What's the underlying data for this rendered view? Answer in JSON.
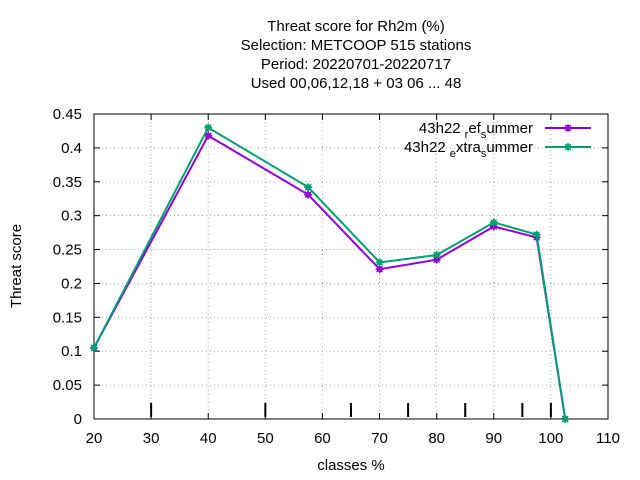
{
  "chart_data": {
    "type": "line",
    "title_lines": [
      "Threat score  for Rh2m (%)",
      "Selection: METCOOP    515 stations",
      "Period: 20220701-20220717",
      "Used  00,06,12,18  + 03 06 ... 48"
    ],
    "xlabel": "classes %",
    "ylabel": "Threat score",
    "xlim": [
      20,
      110
    ],
    "ylim": [
      0,
      0.45
    ],
    "xticks": [
      20,
      30,
      40,
      50,
      60,
      70,
      80,
      90,
      100,
      110
    ],
    "xtick_labels": [
      "20",
      "30",
      "40",
      "50",
      "60",
      "70",
      "80",
      "90",
      "100",
      "110"
    ],
    "yticks": [
      0,
      0.05,
      0.1,
      0.15,
      0.2,
      0.25,
      0.3,
      0.35,
      0.4,
      0.45
    ],
    "ytick_labels": [
      "0",
      "0.05",
      "0.1",
      "0.15",
      "0.2",
      "0.25",
      "0.3",
      "0.35",
      "0.4",
      "0.45"
    ],
    "class_marks": [
      30,
      50,
      65,
      75,
      85,
      95,
      100
    ],
    "grid": true,
    "legend_position": "top-right",
    "legend": [
      {
        "main": "43h22",
        "sub1": "r",
        "mid": "ef",
        "sub2": "s",
        "tail": "ummer"
      },
      {
        "main": "43h22",
        "sub1": "e",
        "mid": "xtra",
        "sub2": "s",
        "tail": "ummer"
      }
    ],
    "series": [
      {
        "color": "#9400d3",
        "x": [
          20,
          40,
          57.5,
          70,
          80,
          90,
          97.5,
          102.5
        ],
        "y": [
          0.105,
          0.418,
          0.331,
          0.221,
          0.235,
          0.284,
          0.268,
          0.0
        ]
      },
      {
        "color": "#009e73",
        "x": [
          20,
          40,
          57.5,
          70,
          80,
          90,
          97.5,
          102.5
        ],
        "y": [
          0.105,
          0.43,
          0.342,
          0.231,
          0.242,
          0.29,
          0.272,
          0.0
        ]
      }
    ]
  }
}
